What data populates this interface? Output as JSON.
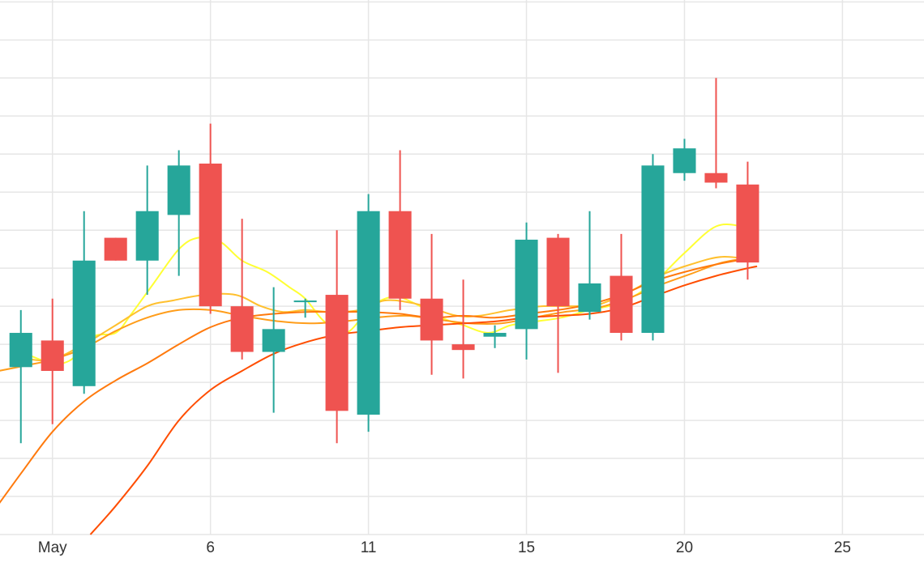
{
  "chart_data": {
    "type": "candlestick",
    "x_ticks": [
      {
        "label": "May",
        "day": 1
      },
      {
        "label": "6",
        "day": 6
      },
      {
        "label": "11",
        "day": 11
      },
      {
        "label": "15",
        "day": 16
      },
      {
        "label": "20",
        "day": 21
      },
      {
        "label": "25",
        "day": 26
      }
    ],
    "xlim": [
      -0.66,
      28.58
    ],
    "ylim": [
      0,
      14.05
    ],
    "y_gridlines": [
      0,
      1,
      2,
      3,
      4,
      5,
      6,
      7,
      8,
      9,
      10,
      11,
      12,
      13,
      14
    ],
    "grid": true,
    "colors": {
      "up": "#26a69a",
      "down": "#ef5350",
      "grid": "#e6e6e6",
      "ma": [
        "#ffff33",
        "#ffc02e",
        "#ff9d1a",
        "#ff7a0d",
        "#ff4d00"
      ]
    },
    "candles": [
      {
        "day": 0,
        "open": 4.4,
        "close": 5.3,
        "high": 5.9,
        "low": 2.4
      },
      {
        "day": 1,
        "open": 5.1,
        "close": 4.3,
        "high": 6.2,
        "low": 2.9
      },
      {
        "day": 2,
        "open": 3.9,
        "close": 7.2,
        "high": 8.5,
        "low": 3.7
      },
      {
        "day": 3,
        "open": 7.8,
        "close": 7.2,
        "high": 7.8,
        "low": 7.2
      },
      {
        "day": 4,
        "open": 7.2,
        "close": 8.5,
        "high": 9.7,
        "low": 6.3
      },
      {
        "day": 5,
        "open": 8.4,
        "close": 9.7,
        "high": 10.1,
        "low": 6.8
      },
      {
        "day": 6,
        "open": 9.75,
        "close": 6.0,
        "high": 10.8,
        "low": 5.8
      },
      {
        "day": 7,
        "open": 6.0,
        "close": 4.8,
        "high": 8.3,
        "low": 4.6
      },
      {
        "day": 8,
        "open": 4.8,
        "close": 5.4,
        "high": 6.5,
        "low": 3.2
      },
      {
        "day": 9,
        "open": 6.15,
        "close": 6.15,
        "high": 6.2,
        "low": 5.7
      },
      {
        "day": 10,
        "open": 6.3,
        "close": 3.25,
        "high": 8.0,
        "low": 2.4
      },
      {
        "day": 11,
        "open": 3.15,
        "close": 8.5,
        "high": 8.95,
        "low": 2.7
      },
      {
        "day": 12,
        "open": 8.5,
        "close": 6.2,
        "high": 10.1,
        "low": 5.9
      },
      {
        "day": 13,
        "open": 6.2,
        "close": 5.1,
        "high": 7.9,
        "low": 4.2
      },
      {
        "day": 14,
        "open": 5.0,
        "close": 4.85,
        "high": 6.7,
        "low": 4.1
      },
      {
        "day": 15,
        "open": 5.2,
        "close": 5.3,
        "high": 5.5,
        "low": 4.9
      },
      {
        "day": 16,
        "open": 5.4,
        "close": 7.75,
        "high": 8.2,
        "low": 4.6
      },
      {
        "day": 17,
        "open": 7.8,
        "close": 6.0,
        "high": 7.9,
        "low": 4.25
      },
      {
        "day": 18,
        "open": 5.85,
        "close": 6.6,
        "high": 8.5,
        "low": 5.65
      },
      {
        "day": 19,
        "open": 6.8,
        "close": 5.3,
        "high": 7.9,
        "low": 5.1
      },
      {
        "day": 20,
        "open": 5.3,
        "close": 9.7,
        "high": 10.0,
        "low": 5.1
      },
      {
        "day": 21,
        "open": 9.5,
        "close": 10.15,
        "high": 10.4,
        "low": 9.3
      },
      {
        "day": 22,
        "open": 9.5,
        "close": 9.25,
        "high": 12.0,
        "low": 9.1
      },
      {
        "day": 23,
        "open": 9.2,
        "close": 7.15,
        "high": 9.8,
        "low": 6.7
      }
    ],
    "series": [
      {
        "values": [
          [
            0.3,
            4.7
          ],
          [
            1,
            4.5
          ],
          [
            1.6,
            4.6
          ],
          [
            2.3,
            5.2
          ],
          [
            3.0,
            5.3
          ],
          [
            3.5,
            5.8
          ],
          [
            4.2,
            6.6
          ],
          [
            5.0,
            7.5
          ],
          [
            5.6,
            7.8
          ],
          [
            6.3,
            7.7
          ],
          [
            7.0,
            7.2
          ],
          [
            7.8,
            6.9
          ],
          [
            8.5,
            6.5
          ],
          [
            9.0,
            6.2
          ],
          [
            9.6,
            5.6
          ],
          [
            10.3,
            5.3
          ],
          [
            11.1,
            6.0
          ],
          [
            11.8,
            6.25
          ],
          [
            12.4,
            6.1
          ],
          [
            13.3,
            5.7
          ],
          [
            14.0,
            5.5
          ],
          [
            14.8,
            5.3
          ],
          [
            15.5,
            5.5
          ],
          [
            16.3,
            5.6
          ],
          [
            17.1,
            5.7
          ],
          [
            18.0,
            5.9
          ],
          [
            19.0,
            6.1
          ],
          [
            20.0,
            6.6
          ],
          [
            21.0,
            7.4
          ],
          [
            22.0,
            8.1
          ],
          [
            22.9,
            8.1
          ],
          [
            23.3,
            8.1
          ]
        ]
      },
      {
        "values": [
          [
            0.3,
            4.6
          ],
          [
            1,
            4.6
          ],
          [
            2.0,
            5.0
          ],
          [
            3.0,
            5.5
          ],
          [
            4.0,
            6.0
          ],
          [
            4.8,
            6.15
          ],
          [
            5.8,
            6.3
          ],
          [
            6.8,
            6.3
          ],
          [
            7.6,
            6.0
          ],
          [
            8.3,
            5.85
          ],
          [
            9.0,
            5.9
          ],
          [
            9.8,
            5.85
          ],
          [
            10.7,
            5.9
          ],
          [
            11.5,
            6.15
          ],
          [
            12.3,
            6.1
          ],
          [
            13.0,
            5.95
          ],
          [
            13.8,
            5.75
          ],
          [
            14.5,
            5.75
          ],
          [
            15.5,
            5.9
          ],
          [
            16.5,
            6.0
          ],
          [
            17.5,
            6.0
          ],
          [
            18.3,
            6.05
          ],
          [
            19.3,
            6.4
          ],
          [
            20.2,
            6.8
          ],
          [
            21.2,
            7.1
          ],
          [
            22.2,
            7.3
          ],
          [
            23.3,
            7.2
          ]
        ]
      },
      {
        "values": [
          [
            -0.7,
            4.3
          ],
          [
            0.2,
            4.45
          ],
          [
            1.0,
            4.6
          ],
          [
            2.0,
            4.9
          ],
          [
            3.0,
            5.35
          ],
          [
            4.0,
            5.7
          ],
          [
            5.0,
            5.9
          ],
          [
            6.0,
            5.9
          ],
          [
            7.0,
            5.75
          ],
          [
            8.2,
            5.6
          ],
          [
            9.2,
            5.55
          ],
          [
            10.2,
            5.6
          ],
          [
            11.2,
            5.7
          ],
          [
            12.2,
            5.75
          ],
          [
            13.2,
            5.65
          ],
          [
            14.2,
            5.55
          ],
          [
            15.2,
            5.55
          ],
          [
            16.2,
            5.7
          ],
          [
            17.2,
            5.85
          ],
          [
            18.2,
            5.95
          ],
          [
            19.2,
            6.2
          ],
          [
            20.2,
            6.55
          ],
          [
            21.2,
            6.85
          ],
          [
            22.2,
            7.15
          ],
          [
            23.3,
            7.3
          ]
        ]
      },
      {
        "values": [
          [
            -0.7,
            0.8
          ],
          [
            0,
            1.6
          ],
          [
            1.0,
            2.7
          ],
          [
            2.0,
            3.5
          ],
          [
            3.0,
            4.05
          ],
          [
            4.0,
            4.5
          ],
          [
            5.0,
            5.0
          ],
          [
            6.0,
            5.45
          ],
          [
            7.0,
            5.7
          ],
          [
            8.0,
            5.8
          ],
          [
            9.0,
            5.85
          ],
          [
            10.0,
            5.85
          ],
          [
            11.0,
            5.85
          ],
          [
            12.0,
            5.8
          ],
          [
            13.0,
            5.7
          ],
          [
            14.0,
            5.75
          ],
          [
            15.0,
            5.7
          ],
          [
            16.0,
            5.8
          ],
          [
            17.0,
            5.9
          ],
          [
            18.0,
            6.05
          ],
          [
            19.0,
            6.3
          ],
          [
            20.0,
            6.65
          ],
          [
            21.0,
            6.9
          ],
          [
            22.0,
            7.1
          ],
          [
            23.0,
            7.25
          ],
          [
            23.3,
            7.3
          ]
        ]
      },
      {
        "values": [
          [
            2.2,
            0.0
          ],
          [
            3.0,
            0.75
          ],
          [
            4.0,
            1.8
          ],
          [
            5.0,
            3.0
          ],
          [
            6.0,
            3.8
          ],
          [
            7.0,
            4.3
          ],
          [
            8.0,
            4.75
          ],
          [
            9.0,
            5.05
          ],
          [
            10.0,
            5.25
          ],
          [
            11.0,
            5.35
          ],
          [
            12.0,
            5.45
          ],
          [
            13.0,
            5.5
          ],
          [
            14.0,
            5.55
          ],
          [
            15.0,
            5.6
          ],
          [
            16.0,
            5.7
          ],
          [
            17.0,
            5.75
          ],
          [
            18.0,
            5.8
          ],
          [
            19.0,
            5.95
          ],
          [
            20.0,
            6.25
          ],
          [
            21.0,
            6.55
          ],
          [
            22.0,
            6.8
          ],
          [
            23.0,
            7.0
          ],
          [
            23.3,
            7.05
          ]
        ]
      }
    ]
  }
}
